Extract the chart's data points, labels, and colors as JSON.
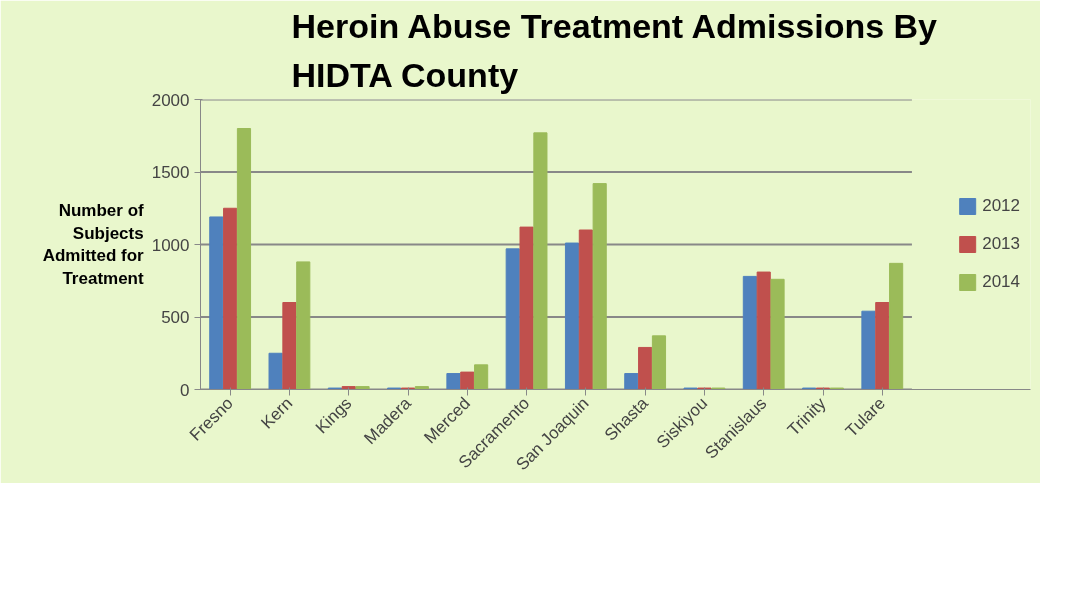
{
  "chart_data": {
    "type": "bar",
    "title": "Heroin Abuse Treatment Admissions By HIDTA County",
    "ylabel": "Number of Subjects Admitted for Treatment",
    "categories": [
      "Fresno",
      "Kern",
      "Kings",
      "Madera",
      "Merced",
      "Sacramento",
      "San Joaquin",
      "Shasta",
      "Siskiyou",
      "Stanislaus",
      "Trinity",
      "Tulare"
    ],
    "series": [
      {
        "name": "2012",
        "color": "#4f81bd",
        "values": [
          1190,
          250,
          10,
          10,
          110,
          970,
          1010,
          110,
          10,
          780,
          10,
          540
        ]
      },
      {
        "name": "2013",
        "color": "#c0504d",
        "values": [
          1250,
          600,
          20,
          10,
          120,
          1120,
          1100,
          290,
          10,
          810,
          10,
          600
        ]
      },
      {
        "name": "2014",
        "color": "#9bbb59",
        "values": [
          1800,
          880,
          20,
          20,
          170,
          1770,
          1420,
          370,
          10,
          760,
          10,
          870
        ]
      }
    ],
    "ylim": [
      0,
      2000
    ],
    "yticks": [
      0,
      500,
      1000,
      1500,
      2000
    ],
    "grid": "y",
    "legend": "right"
  }
}
